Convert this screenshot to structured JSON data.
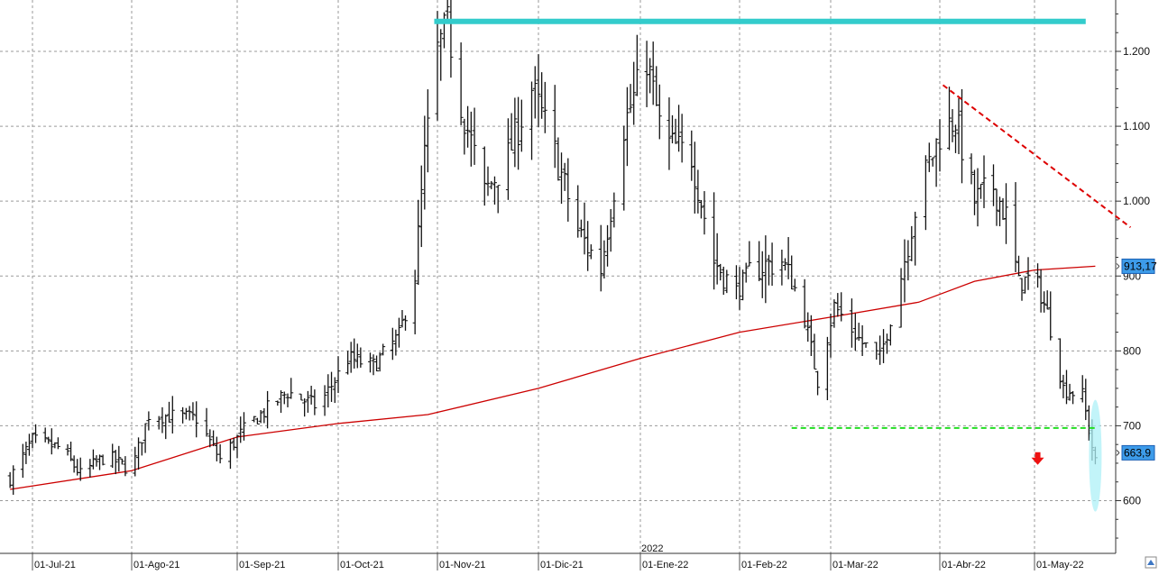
{
  "chart_data": {
    "type": "ohlc",
    "y_ticks": [
      600,
      700,
      800,
      900,
      1000,
      1100,
      1200
    ],
    "y_tick_labels": [
      "600",
      "700",
      "800",
      "900",
      "1.000",
      "1.100",
      "1.200"
    ],
    "ylim": [
      500,
      1260
    ],
    "x_ticks": [
      {
        "date": "2021-07-01",
        "label": "01-Jul-21"
      },
      {
        "date": "2021-08-01",
        "label": "01-Ago-21"
      },
      {
        "date": "2021-09-01",
        "label": "01-Sep-21"
      },
      {
        "date": "2021-10-01",
        "label": "01-Oct-21"
      },
      {
        "date": "2021-11-01",
        "label": "01-Nov-21"
      },
      {
        "date": "2021-12-01",
        "label": "01-Dic-21"
      },
      {
        "date": "2022-01-01",
        "label": "01-Ene-22"
      },
      {
        "date": "2022-02-01",
        "label": "01-Feb-22"
      },
      {
        "date": "2022-03-01",
        "label": "01-Mar-22"
      },
      {
        "date": "2022-04-01",
        "label": "01-Abr-22"
      },
      {
        "date": "2022-05-01",
        "label": "01-May-22"
      }
    ],
    "year_marker": {
      "date": "2022-01-01",
      "label": "2022"
    },
    "grid": true,
    "grid_style": "dashed",
    "price_anchors": [
      [
        "2021-06-24",
        630
      ],
      [
        "2021-07-01",
        680
      ],
      [
        "2021-07-10",
        670
      ],
      [
        "2021-07-16",
        635
      ],
      [
        "2021-07-24",
        660
      ],
      [
        "2021-08-01",
        640
      ],
      [
        "2021-08-06",
        715
      ],
      [
        "2021-08-20",
        710
      ],
      [
        "2021-08-27",
        655
      ],
      [
        "2021-09-04",
        700
      ],
      [
        "2021-09-16",
        745
      ],
      [
        "2021-09-25",
        725
      ],
      [
        "2021-10-04",
        790
      ],
      [
        "2021-10-12",
        780
      ],
      [
        "2021-10-20",
        820
      ],
      [
        "2021-10-25",
        900
      ],
      [
        "2021-10-28",
        1060
      ],
      [
        "2021-11-01",
        1200
      ],
      [
        "2021-11-04",
        1235
      ],
      [
        "2021-11-08",
        1130
      ],
      [
        "2021-11-15",
        1010
      ],
      [
        "2021-11-22",
        1060
      ],
      [
        "2021-11-29",
        1150
      ],
      [
        "2021-12-05",
        1080
      ],
      [
        "2021-12-13",
        960
      ],
      [
        "2021-12-20",
        910
      ],
      [
        "2021-12-27",
        1100
      ],
      [
        "2022-01-03",
        1190
      ],
      [
        "2022-01-08",
        1080
      ],
      [
        "2022-01-17",
        1060
      ],
      [
        "2022-01-24",
        920
      ],
      [
        "2022-01-31",
        880
      ],
      [
        "2022-02-05",
        910
      ],
      [
        "2022-02-14",
        920
      ],
      [
        "2022-02-20",
        865
      ],
      [
        "2022-02-25",
        760
      ],
      [
        "2022-03-02",
        860
      ],
      [
        "2022-03-10",
        810
      ],
      [
        "2022-03-15",
        790
      ],
      [
        "2022-03-20",
        880
      ],
      [
        "2022-03-26",
        1010
      ],
      [
        "2022-04-01",
        1090
      ],
      [
        "2022-04-06",
        1110
      ],
      [
        "2022-04-12",
        1000
      ],
      [
        "2022-04-18",
        1020
      ],
      [
        "2022-04-22",
        980
      ],
      [
        "2022-04-26",
        890
      ],
      [
        "2022-05-01",
        900
      ],
      [
        "2022-05-05",
        850
      ],
      [
        "2022-05-10",
        750
      ],
      [
        "2022-05-16",
        740
      ],
      [
        "2022-05-20",
        650
      ]
    ],
    "series": [
      {
        "type": "line",
        "color": "#cc0000",
        "points": [
          [
            "2021-06-24",
            615
          ],
          [
            "2021-08-01",
            640
          ],
          [
            "2021-09-01",
            685
          ],
          [
            "2021-10-01",
            703
          ],
          [
            "2021-10-29",
            715
          ],
          [
            "2021-12-01",
            750
          ],
          [
            "2022-01-01",
            790
          ],
          [
            "2022-02-01",
            825
          ],
          [
            "2022-03-01",
            845
          ],
          [
            "2022-03-26",
            865
          ],
          [
            "2022-04-12",
            893
          ],
          [
            "2022-05-01",
            908
          ],
          [
            "2022-05-20",
            913
          ]
        ],
        "last_value_label": "913,17"
      }
    ],
    "last_price_label": "663,9",
    "annotations": [
      {
        "kind": "horizontal-line",
        "name": "resistance-line",
        "color": "#33cccc",
        "from": [
          "2021-10-31",
          1240
        ],
        "to": [
          "2022-05-17",
          1240
        ],
        "dash": false
      },
      {
        "kind": "horizontal-line",
        "name": "support-line",
        "color": "#22dd22",
        "from": [
          "2022-02-17",
          697
        ],
        "to": [
          "2022-05-20",
          697
        ],
        "dash": true
      },
      {
        "kind": "trend-line",
        "name": "downtrend-line",
        "color": "#dd0000",
        "from": [
          "2022-04-02",
          1155
        ],
        "to": [
          "2022-05-31",
          965
        ],
        "dash": true
      },
      {
        "kind": "arrow-down",
        "name": "sell-arrow",
        "color": "#ee1111",
        "at": [
          "2022-05-02",
          655
        ]
      },
      {
        "kind": "ellipse-highlight",
        "name": "breakdown-highlight",
        "color": "#aef0f7",
        "at": [
          "2022-05-20",
          660
        ]
      }
    ],
    "colors": {
      "bars": "#111111",
      "grid": "#9a9a9a",
      "price_tag_bg": "#3d9be9",
      "price_tag_border": "#1a5fb4"
    }
  }
}
